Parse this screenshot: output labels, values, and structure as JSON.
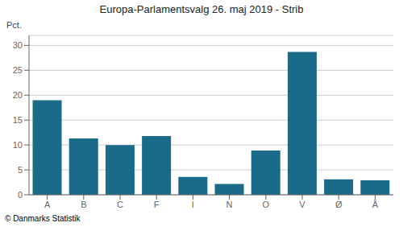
{
  "chart_data": {
    "type": "bar",
    "title": "Europa-Parlamentsvalg 26. maj 2019 - Strib",
    "ylabel": "Pct.",
    "categories": [
      "A",
      "B",
      "C",
      "F",
      "I",
      "N",
      "O",
      "V",
      "Ø",
      "Å"
    ],
    "values": [
      19.0,
      11.3,
      10.0,
      11.8,
      3.6,
      2.2,
      8.9,
      28.7,
      3.1,
      2.9
    ],
    "color": "#1a6b8a",
    "ylim": [
      0,
      32
    ],
    "yticks": [
      0,
      5,
      10,
      15,
      20,
      25,
      30
    ],
    "grid": true,
    "annotations": [
      "© Danmarks Statistik"
    ]
  }
}
